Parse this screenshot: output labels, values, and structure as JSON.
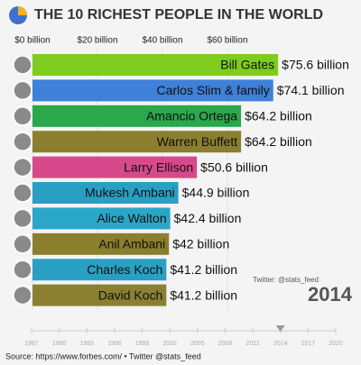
{
  "chart_data": {
    "type": "bar",
    "orientation": "horizontal",
    "title": "THE 10 RICHEST PEOPLE IN THE WORLD",
    "categories": [
      "Bill Gates",
      "Carlos Slim & family",
      "Amancio Ortega",
      "Warren Buffett",
      "Larry Ellison",
      "Mukesh Ambani",
      "Alice Walton",
      "Anil Ambani",
      "Charles Koch",
      "David Koch"
    ],
    "values": [
      75.6,
      74.1,
      64.2,
      64.2,
      50.6,
      44.9,
      42.4,
      42,
      41.2,
      41.2
    ],
    "value_labels": [
      "$75.6 billion",
      "$74.1 billion",
      "$64.2 billion",
      "$64.2 billion",
      "$50.6 billion",
      "$44.9 billion",
      "$42.4 billion",
      "$42 billion",
      "$41.2 billion",
      "$41.2 billion"
    ],
    "colors": [
      "#7dcc1e",
      "#3f80d8",
      "#2aa84b",
      "#8b7e2e",
      "#d64a8b",
      "#2a9fc4",
      "#2aa7c8",
      "#8b7e2e",
      "#2a9fc4",
      "#8b8031"
    ],
    "xlim": [
      0,
      80
    ],
    "xticks": [
      {
        "value": 0,
        "label": "$0 billion"
      },
      {
        "value": 20,
        "label": "$20 billion"
      },
      {
        "value": 40,
        "label": "$40 billion"
      },
      {
        "value": 60,
        "label": "$60 billion"
      }
    ],
    "grid": true,
    "timeline": {
      "ticks": [
        1987,
        1990,
        1993,
        1996,
        1999,
        2002,
        2005,
        2008,
        2011,
        2014,
        2017,
        2020
      ],
      "current": 2014
    },
    "watermark": "Twitter: @stats_feed",
    "source": "Source: https://www.forbes.com/ • Twitter @stats_feed"
  }
}
